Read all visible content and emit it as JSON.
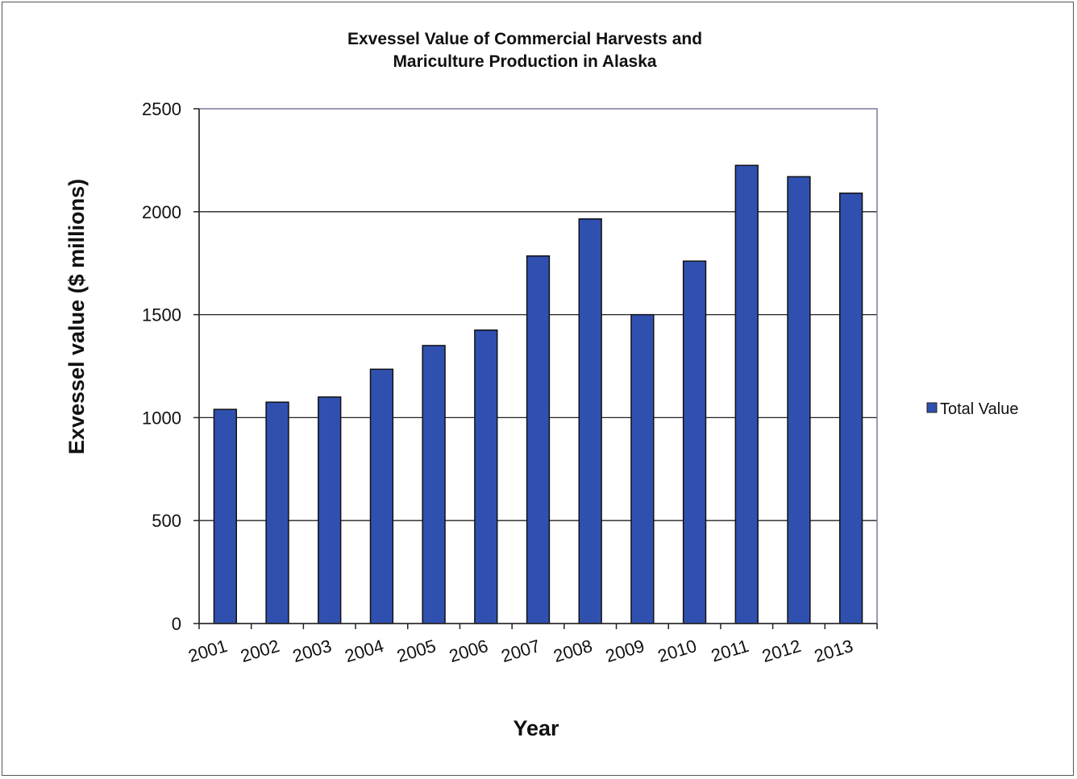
{
  "chart_data": {
    "type": "bar",
    "title_lines": [
      "Exvessel Value of Commercial Harvests and",
      "Mariculture Production in Alaska"
    ],
    "xlabel": "Year",
    "ylabel": "Exvessel value ($ millions)",
    "ylim": [
      0,
      2500
    ],
    "yticks": [
      0,
      500,
      1000,
      1500,
      2000,
      2500
    ],
    "categories": [
      "2001",
      "2002",
      "2003",
      "2004",
      "2005",
      "2006",
      "2007",
      "2008",
      "2009",
      "2010",
      "2011",
      "2012",
      "2013"
    ],
    "series": [
      {
        "name": "Total Value",
        "color": "#3050b0",
        "values": [
          1040,
          1075,
          1100,
          1235,
          1350,
          1425,
          1785,
          1965,
          1500,
          1760,
          2225,
          2170,
          2090
        ]
      }
    ],
    "grid": "horizontal",
    "legend_position": "right"
  }
}
